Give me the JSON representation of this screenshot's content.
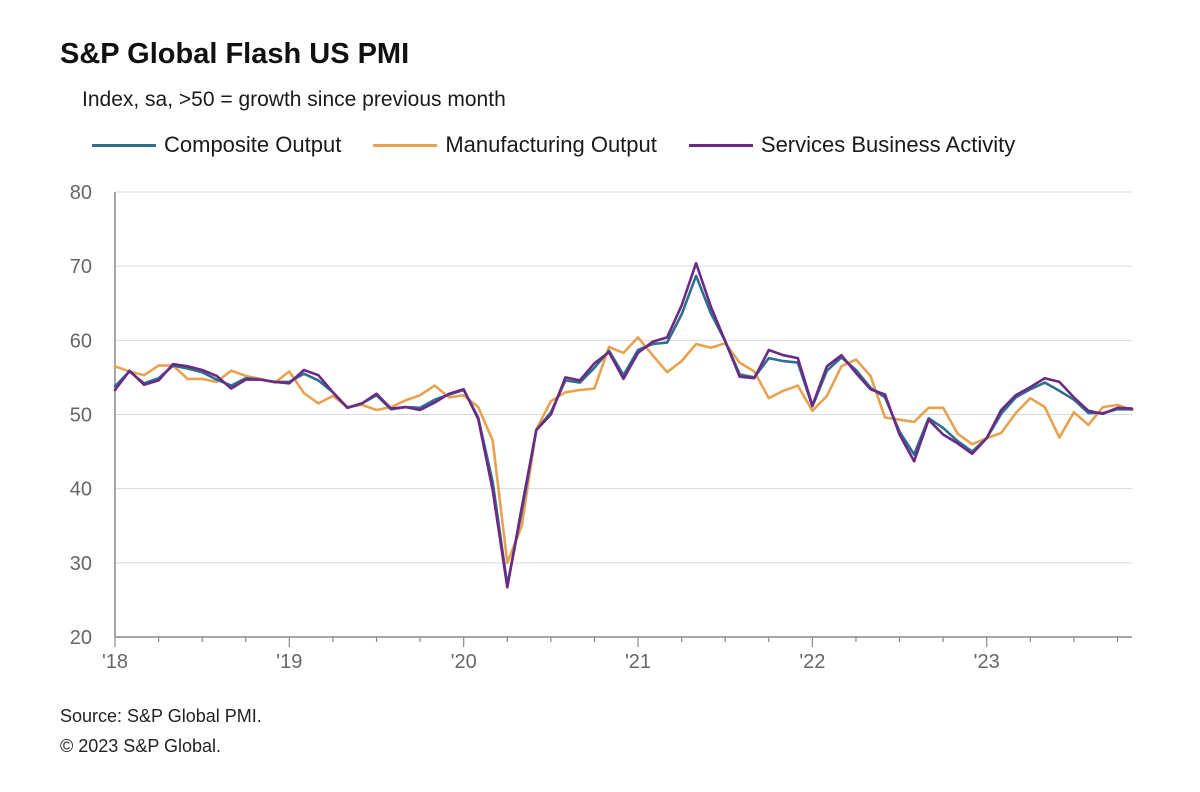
{
  "header": {
    "title": "S&P Global Flash US PMI",
    "subtitle": "Index, sa, >50 = growth since previous month"
  },
  "footer": {
    "source": "Source: S&P Global PMI.",
    "copyright": "© 2023 S&P Global."
  },
  "colors": {
    "composite": "#2e6f8e",
    "manufacturing": "#e8a24e",
    "services": "#6a2a85",
    "grid": "#d9d9d9",
    "axis": "#888888"
  },
  "chart_data": {
    "type": "line",
    "title": "S&P Global Flash US PMI",
    "ylabel": "Index, sa, >50 = growth since previous month",
    "xlabel": "",
    "ylim": [
      20,
      80
    ],
    "yticks": [
      20,
      30,
      40,
      50,
      60,
      70,
      80
    ],
    "x_start": "2018-01",
    "x_count": 71,
    "xtick_labels": [
      {
        "label": "'18",
        "index": 0
      },
      {
        "label": "'19",
        "index": 12
      },
      {
        "label": "'20",
        "index": 24
      },
      {
        "label": "'21",
        "index": 36
      },
      {
        "label": "'22",
        "index": 48
      },
      {
        "label": "'23",
        "index": 60
      }
    ],
    "legend_position": "top",
    "grid": true,
    "series": [
      {
        "name": "Composite Output",
        "key": "composite",
        "values": [
          53.8,
          55.8,
          54.2,
          54.9,
          56.6,
          56.2,
          55.7,
          54.7,
          53.9,
          54.9,
          54.7,
          54.4,
          54.4,
          55.5,
          54.6,
          53.0,
          50.9,
          51.5,
          52.6,
          50.7,
          51.0,
          50.9,
          52.0,
          52.7,
          53.3,
          49.6,
          40.9,
          27.0,
          37.0,
          47.9,
          50.3,
          54.6,
          54.3,
          56.3,
          58.6,
          55.3,
          58.7,
          59.5,
          59.7,
          63.5,
          68.7,
          63.7,
          59.9,
          55.4,
          55.0,
          57.6,
          57.2,
          57.0,
          51.1,
          55.9,
          57.7,
          56.0,
          53.6,
          52.3,
          47.7,
          44.6,
          49.5,
          48.2,
          46.4,
          45.0,
          46.8,
          50.1,
          52.3,
          53.4,
          54.3,
          53.2,
          52.0,
          50.2,
          50.2,
          50.7,
          50.7
        ]
      },
      {
        "name": "Manufacturing Output",
        "key": "manufacturing",
        "values": [
          56.5,
          55.8,
          55.3,
          56.6,
          56.6,
          54.8,
          54.8,
          54.4,
          55.9,
          55.2,
          54.8,
          54.3,
          55.8,
          52.9,
          51.5,
          52.5,
          51.0,
          51.3,
          50.6,
          51.0,
          51.9,
          52.6,
          53.9,
          52.3,
          52.6,
          51.0,
          46.5,
          30.0,
          35.0,
          48.0,
          51.8,
          53.0,
          53.3,
          53.5,
          59.1,
          58.3,
          60.4,
          58.0,
          55.7,
          57.2,
          59.5,
          59.0,
          59.6,
          57.0,
          55.8,
          52.2,
          53.2,
          53.9,
          50.5,
          52.5,
          56.5,
          57.4,
          55.2,
          49.6,
          49.3,
          49.0,
          50.9,
          50.9,
          47.4,
          46.0,
          46.8,
          47.5,
          50.2,
          52.2,
          51.0,
          46.9,
          50.3,
          48.6,
          51.0,
          51.3,
          50.6
        ]
      },
      {
        "name": "Services Business Activity",
        "key": "services",
        "values": [
          53.3,
          55.9,
          54.0,
          54.6,
          56.8,
          56.5,
          56.0,
          55.2,
          53.5,
          54.7,
          54.7,
          54.4,
          54.2,
          56.0,
          55.3,
          53.0,
          50.9,
          51.5,
          52.8,
          50.8,
          51.0,
          50.6,
          51.6,
          52.8,
          53.4,
          49.4,
          39.8,
          26.7,
          37.5,
          47.9,
          50.0,
          55.0,
          54.6,
          56.9,
          58.4,
          54.8,
          58.3,
          59.8,
          60.4,
          64.7,
          70.4,
          64.6,
          59.9,
          55.1,
          54.9,
          58.7,
          58.0,
          57.6,
          51.2,
          56.5,
          58.0,
          55.6,
          53.4,
          52.7,
          47.3,
          43.7,
          49.3,
          47.3,
          46.1,
          44.7,
          46.8,
          50.6,
          52.6,
          53.7,
          54.9,
          54.4,
          52.3,
          50.5,
          50.1,
          50.9,
          50.8
        ]
      }
    ]
  }
}
